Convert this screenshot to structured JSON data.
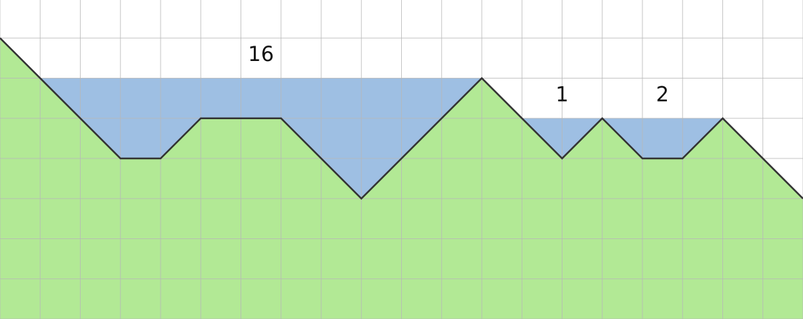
{
  "diagram": {
    "grid_columns": 20,
    "grid_rows": 8,
    "terrain_heights": [
      7,
      6,
      5,
      4,
      4,
      5,
      5,
      5,
      4,
      3,
      4,
      5,
      6,
      5,
      4,
      5,
      4,
      4,
      5,
      4,
      3
    ],
    "water_level_rows": [
      {
        "from": 1,
        "to": 12,
        "level": 6
      },
      {
        "from": 13,
        "to": 18,
        "level": 5
      }
    ],
    "basins": [
      {
        "label": "16",
        "area": 16,
        "anchor_col": 6.5,
        "anchor_row": 6.6
      },
      {
        "label": "1",
        "area": 1,
        "anchor_col": 14.0,
        "anchor_row": 5.6
      },
      {
        "label": "2",
        "area": 2,
        "anchor_col": 16.5,
        "anchor_row": 5.6
      }
    ],
    "colors": {
      "terrain": "#b2e995",
      "water": "#9ebfe3",
      "grid": "#b8b8b8",
      "outline": "#333333",
      "label": "#111111"
    }
  }
}
